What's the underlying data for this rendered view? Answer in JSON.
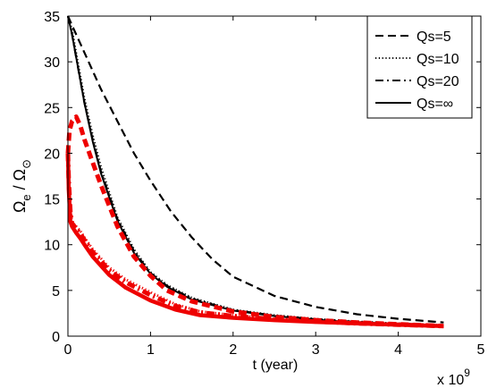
{
  "chart_data": {
    "type": "line",
    "xlabel": "t (year)",
    "ylabel_main": "Ω",
    "ylabel_main_sub": "e",
    "ylabel_sep": " / ",
    "ylabel_ref": "Ω",
    "ylabel_ref_sub": "⊙",
    "x_multiplier_prefix": "x 10",
    "x_multiplier_exp": "9",
    "xlim": [
      0,
      5
    ],
    "ylim": [
      0,
      35
    ],
    "xticks": [
      0,
      1,
      2,
      3,
      4,
      5
    ],
    "yticks": [
      0,
      5,
      10,
      15,
      20,
      25,
      30,
      35
    ],
    "grid": false,
    "legend_position": "top-right",
    "legend": [
      {
        "label": "Qs=5",
        "style": "dashed"
      },
      {
        "label": "Qs=10",
        "style": "dotted"
      },
      {
        "label": "Qs=20",
        "style": "dashdot"
      },
      {
        "label": "Qs=∞",
        "style": "solid"
      }
    ],
    "colors": {
      "black": "#000000",
      "red": "#ee0000"
    },
    "series": [
      {
        "color": "#000000",
        "style": "dashed",
        "x": [
          0,
          0.1,
          0.2,
          0.4,
          0.6,
          0.8,
          1.0,
          1.25,
          1.5,
          1.75,
          2.0,
          2.5,
          3.0,
          3.5,
          4.0,
          4.55
        ],
        "y": [
          35,
          33,
          31,
          27,
          23.5,
          20,
          17,
          13.6,
          10.8,
          8.4,
          6.5,
          4.4,
          3.2,
          2.4,
          1.9,
          1.5
        ]
      },
      {
        "color": "#000000",
        "style": "dotted",
        "x": [
          0,
          0.05,
          0.1,
          0.2,
          0.3,
          0.4,
          0.6,
          0.8,
          1.0,
          1.2,
          1.5,
          2.0,
          2.5,
          3.0,
          3.5,
          4.0,
          4.55
        ],
        "y": [
          35,
          33.5,
          31,
          26,
          22,
          18.5,
          13,
          9.5,
          7.0,
          5.6,
          4.2,
          2.9,
          2.3,
          1.9,
          1.6,
          1.4,
          1.2
        ]
      },
      {
        "color": "#000000",
        "style": "dashdot",
        "x": [
          0,
          0.05,
          0.1,
          0.2,
          0.3,
          0.4,
          0.6,
          0.8,
          1.0,
          1.2,
          1.5,
          2.0,
          2.5,
          3.0,
          3.5,
          4.0,
          4.55
        ],
        "y": [
          35,
          33,
          30.5,
          25.5,
          21.5,
          18,
          12.8,
          9.3,
          6.9,
          5.5,
          4.1,
          2.85,
          2.25,
          1.85,
          1.55,
          1.35,
          1.15
        ]
      },
      {
        "color": "#000000",
        "style": "solid",
        "x": [
          0,
          0.05,
          0.1,
          0.2,
          0.3,
          0.4,
          0.6,
          0.8,
          1.0,
          1.2,
          1.5,
          2.0,
          2.5,
          3.0,
          3.5,
          4.0,
          4.55
        ],
        "y": [
          35,
          33,
          30.5,
          25.5,
          21.3,
          17.8,
          12.6,
          9.1,
          6.8,
          5.4,
          4.0,
          2.8,
          2.2,
          1.8,
          1.5,
          1.3,
          1.1
        ]
      },
      {
        "color": "#ee0000",
        "style": "dashed",
        "x": [
          0,
          0.02,
          0.05,
          0.1,
          0.15,
          0.2,
          0.3,
          0.4,
          0.6,
          0.8,
          1.0,
          1.2,
          1.5,
          2.0,
          2.5,
          3.0,
          3.5,
          4.0,
          4.55
        ],
        "y": [
          20,
          22.5,
          23.5,
          24,
          23,
          21.5,
          19,
          16.5,
          12,
          8.7,
          6.6,
          5.0,
          3.8,
          2.7,
          2.1,
          1.75,
          1.5,
          1.3,
          1.1
        ]
      },
      {
        "color": "#ee0000",
        "style": "dotted",
        "x": [
          0,
          0.01,
          0.03,
          0.05,
          0.1,
          0.15,
          0.2,
          0.3,
          0.5,
          0.7,
          1.0,
          1.3,
          1.6,
          2.0,
          2.5,
          3.0,
          3.5,
          4.0,
          4.55
        ],
        "y": [
          20,
          18,
          14,
          12.5,
          12,
          11.5,
          10.8,
          9.5,
          7.5,
          6.2,
          4.8,
          3.5,
          2.7,
          2.3,
          1.9,
          1.6,
          1.4,
          1.25,
          1.1
        ]
      },
      {
        "color": "#ee0000",
        "style": "dashdot",
        "x": [
          0,
          0.01,
          0.03,
          0.05,
          0.1,
          0.15,
          0.2,
          0.3,
          0.5,
          0.7,
          1.0,
          1.3,
          1.6,
          2.0,
          2.5,
          3.0,
          3.5,
          4.0,
          4.55
        ],
        "y": [
          20,
          17,
          13.5,
          12.3,
          11.8,
          11.2,
          10.5,
          9.2,
          7.2,
          5.9,
          4.5,
          3.3,
          2.6,
          2.2,
          1.85,
          1.6,
          1.4,
          1.25,
          1.1
        ]
      },
      {
        "color": "#ee0000",
        "style": "solid",
        "x": [
          0,
          0.01,
          0.03,
          0.05,
          0.1,
          0.15,
          0.2,
          0.3,
          0.5,
          0.7,
          1.0,
          1.3,
          1.6,
          2.0,
          2.5,
          3.0,
          3.5,
          4.0,
          4.55
        ],
        "y": [
          20,
          16,
          12.5,
          12,
          11.3,
          10.7,
          10.0,
          8.7,
          6.7,
          5.3,
          3.9,
          2.9,
          2.3,
          2.0,
          1.75,
          1.55,
          1.4,
          1.25,
          1.1
        ]
      }
    ]
  }
}
